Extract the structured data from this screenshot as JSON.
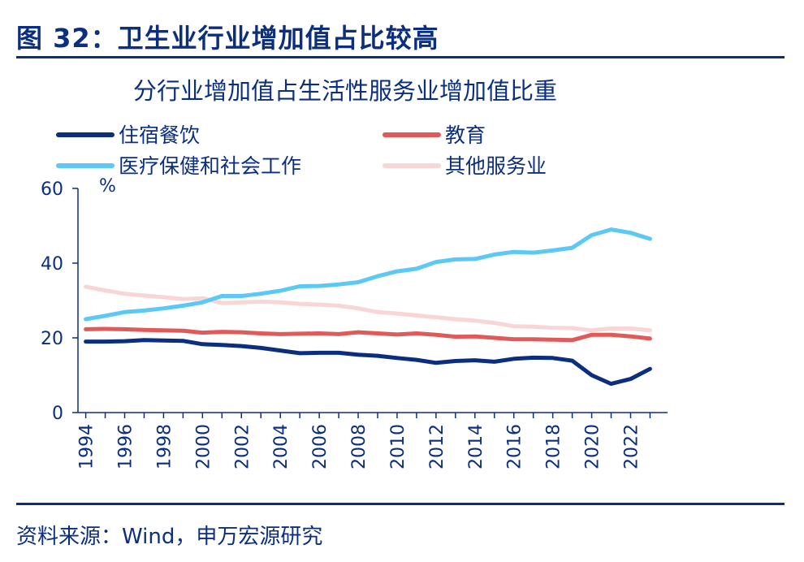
{
  "figure": {
    "title": "图 32：卫生业行业增加值占比较高",
    "source": "资料来源：Wind，申万宏源研究"
  },
  "chart_data": {
    "type": "line",
    "title": "分行业增加值占生活性服务业增加值比重",
    "ylabel": "%",
    "xlabel": "",
    "ylim": [
      0,
      60
    ],
    "yticks": [
      0,
      20,
      40,
      60
    ],
    "xtick_labels": [
      "1994",
      "1996",
      "1998",
      "2000",
      "2002",
      "2004",
      "2006",
      "2008",
      "2010",
      "2012",
      "2014",
      "2016",
      "2018",
      "2020",
      "2022"
    ],
    "x": [
      1994,
      1995,
      1996,
      1997,
      1998,
      1999,
      2000,
      2001,
      2002,
      2003,
      2004,
      2005,
      2006,
      2007,
      2008,
      2009,
      2010,
      2011,
      2012,
      2013,
      2014,
      2015,
      2016,
      2017,
      2018,
      2019,
      2020,
      2021,
      2022,
      2023
    ],
    "grid": false,
    "legend_position": "top",
    "series": [
      {
        "name": "住宿餐饮",
        "color": "#0b2f7e",
        "values": [
          19.0,
          19.0,
          19.1,
          19.4,
          19.3,
          19.2,
          18.3,
          18.1,
          17.8,
          17.3,
          16.6,
          15.9,
          16.0,
          16.0,
          15.5,
          15.2,
          14.6,
          14.1,
          13.3,
          13.8,
          14.0,
          13.6,
          14.4,
          14.7,
          14.6,
          13.9,
          10.0,
          7.7,
          9.0,
          11.7
        ]
      },
      {
        "name": "教育",
        "color": "#e05a5a",
        "values": [
          22.3,
          22.4,
          22.3,
          22.1,
          22.0,
          21.9,
          21.4,
          21.6,
          21.5,
          21.2,
          21.0,
          21.1,
          21.2,
          21.0,
          21.5,
          21.2,
          20.9,
          21.2,
          20.8,
          20.3,
          20.4,
          20.0,
          19.6,
          19.6,
          19.5,
          19.4,
          20.8,
          20.8,
          20.4,
          19.8
        ]
      },
      {
        "name": "医疗保健和社会工作",
        "color": "#5bc8f5",
        "values": [
          25.0,
          25.9,
          26.9,
          27.3,
          27.9,
          28.6,
          29.5,
          31.2,
          31.2,
          31.8,
          32.6,
          33.8,
          33.9,
          34.3,
          34.9,
          36.5,
          37.8,
          38.5,
          40.3,
          41.0,
          41.1,
          42.3,
          43.0,
          42.8,
          43.4,
          44.1,
          47.5,
          49.0,
          48.1,
          46.5
        ]
      },
      {
        "name": "其他服务业",
        "color": "#f9d5d5",
        "values": [
          33.7,
          32.7,
          31.8,
          31.3,
          30.9,
          30.4,
          30.6,
          29.3,
          29.5,
          29.7,
          29.5,
          29.1,
          28.9,
          28.6,
          27.9,
          26.9,
          26.5,
          26.0,
          25.5,
          25.0,
          24.6,
          24.0,
          23.1,
          23.0,
          22.7,
          22.6,
          22.0,
          22.5,
          22.5,
          22.0
        ]
      }
    ]
  }
}
